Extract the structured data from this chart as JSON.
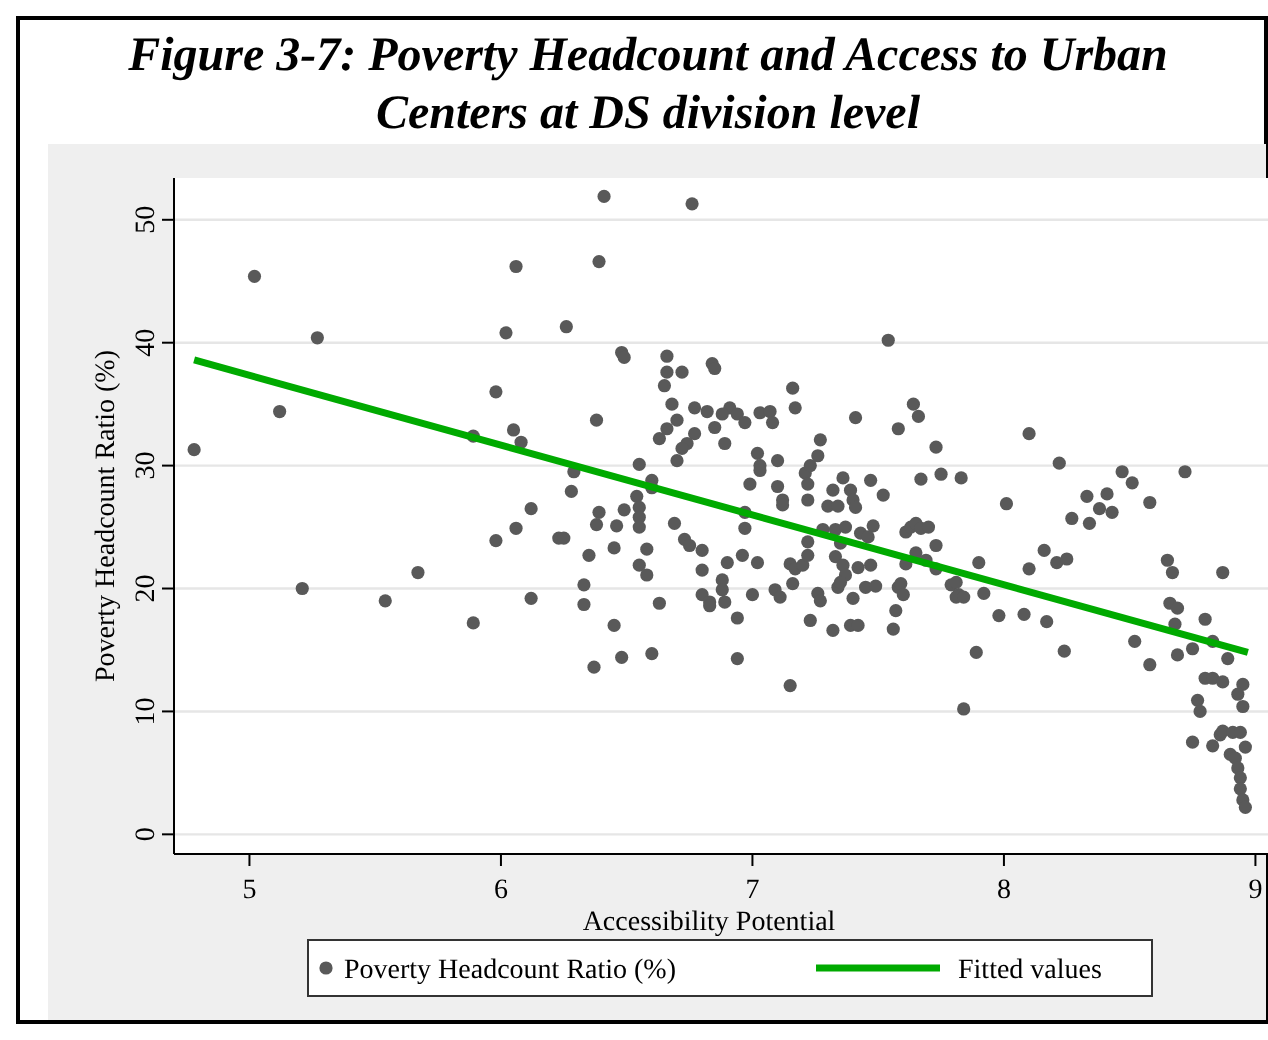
{
  "chart_data": {
    "type": "scatter",
    "title": "Figure 3-7: Poverty Headcount and Access to Urban Centers at DS division level",
    "xlabel": "Accessibility Potential",
    "ylabel": "Poverty Headcount Ratio (%)",
    "xlim": [
      4.7,
      9.05
    ],
    "ylim": [
      -1.6,
      53.4
    ],
    "xticks": [
      5,
      6,
      7,
      8,
      9
    ],
    "yticks": [
      0,
      10,
      20,
      30,
      40,
      50
    ],
    "grid": "y",
    "legend": "bottom",
    "series": [
      {
        "name": "Poverty Headcount Ratio (%)",
        "marker": "circle",
        "color": "#595959",
        "x": [
          4.78,
          5.02,
          5.27,
          5.12,
          5.21,
          5.54,
          5.67,
          5.89,
          5.89,
          5.98,
          6.02,
          6.06,
          6.05,
          6.08,
          6.12,
          6.06,
          5.98,
          6.12,
          6.23,
          6.41,
          6.76,
          6.39,
          6.26,
          6.48,
          6.49,
          6.66,
          6.66,
          6.72,
          6.65,
          6.84,
          6.85,
          7.54,
          6.68,
          6.77,
          6.82,
          6.7,
          6.66,
          6.63,
          6.77,
          6.74,
          6.72,
          6.85,
          6.89,
          6.91,
          6.94,
          6.97,
          6.88,
          7.03,
          7.07,
          7.08,
          7.16,
          7.17,
          7.41,
          7.58,
          6.38,
          6.29,
          6.28,
          6.25,
          6.35,
          6.39,
          6.38,
          6.45,
          6.46,
          6.49,
          6.55,
          6.6,
          6.6,
          6.54,
          6.55,
          6.55,
          6.55,
          6.58,
          6.55,
          6.58,
          6.33,
          6.33,
          6.45,
          6.48,
          6.37,
          6.6,
          6.63,
          6.69,
          6.7,
          6.73,
          6.75,
          6.8,
          6.8,
          6.8,
          6.83,
          6.83,
          6.88,
          6.88,
          6.89,
          6.94,
          6.94,
          6.9,
          6.96,
          6.97,
          6.97,
          6.99,
          7.02,
          7.03,
          7.03,
          7.02,
          7.0,
          7.1,
          7.1,
          7.12,
          7.12,
          7.09,
          7.11,
          7.15,
          7.17,
          7.2,
          7.22,
          7.22,
          7.16,
          7.15,
          7.21,
          7.23,
          7.22,
          7.22,
          7.26,
          7.27,
          7.23,
          7.26,
          7.27,
          7.3,
          7.34,
          7.32,
          7.36,
          7.39,
          7.4,
          7.41,
          7.28,
          7.33,
          7.37,
          7.43,
          7.48,
          7.46,
          7.47,
          7.52,
          7.35,
          7.33,
          7.36,
          7.37,
          7.42,
          7.47,
          7.34,
          7.35,
          7.4,
          7.45,
          7.49,
          7.32,
          7.39,
          7.42,
          7.56,
          7.58,
          7.57,
          7.64,
          7.66,
          7.73,
          7.67,
          7.75,
          7.83,
          7.61,
          7.63,
          7.65,
          7.67,
          7.7,
          7.65,
          7.69,
          7.73,
          7.73,
          7.61,
          7.59,
          7.6,
          7.79,
          7.81,
          7.82,
          7.81,
          7.84,
          7.9,
          7.92,
          7.89,
          7.84,
          7.98,
          8.01,
          8.1,
          8.1,
          8.08,
          8.17,
          8.16,
          8.21,
          8.25,
          8.24,
          8.22,
          8.27,
          8.34,
          8.33,
          8.38,
          8.41,
          8.43,
          8.47,
          8.51,
          8.58,
          8.52,
          8.58,
          8.72,
          8.65,
          8.67,
          8.66,
          8.69,
          8.68,
          8.69,
          8.75,
          8.8,
          8.83,
          8.87,
          8.89,
          8.8,
          8.83,
          8.87,
          8.77,
          8.78,
          8.75,
          8.83,
          8.86,
          8.87,
          8.91,
          8.94,
          8.9,
          8.92,
          8.96,
          8.95,
          8.93,
          8.95,
          8.93,
          8.94,
          8.94,
          8.95,
          8.96
        ],
        "values": [
          31.3,
          45.4,
          40.4,
          34.4,
          20.0,
          19.0,
          21.3,
          17.2,
          32.4,
          36.0,
          40.8,
          46.2,
          32.9,
          31.9,
          26.5,
          24.9,
          23.9,
          19.2,
          24.1,
          51.9,
          51.3,
          46.6,
          41.3,
          39.2,
          38.8,
          38.9,
          37.6,
          37.6,
          36.5,
          38.3,
          37.9,
          40.2,
          35.0,
          34.7,
          34.4,
          33.7,
          33.0,
          32.2,
          32.6,
          31.8,
          31.4,
          33.1,
          31.8,
          34.7,
          34.2,
          33.5,
          34.2,
          34.3,
          34.4,
          33.5,
          36.3,
          34.7,
          33.9,
          33.0,
          33.7,
          29.5,
          27.9,
          24.1,
          22.7,
          26.2,
          25.2,
          23.3,
          25.1,
          26.4,
          30.1,
          28.8,
          28.2,
          27.5,
          26.6,
          25.8,
          25.0,
          23.2,
          21.9,
          21.1,
          20.3,
          18.7,
          17.0,
          14.4,
          13.6,
          14.7,
          18.8,
          25.3,
          30.4,
          24.0,
          23.5,
          23.1,
          21.5,
          19.5,
          18.9,
          18.6,
          20.7,
          19.9,
          18.9,
          17.6,
          14.3,
          22.1,
          22.7,
          24.9,
          26.2,
          28.5,
          31.0,
          30.0,
          29.6,
          22.1,
          19.5,
          30.4,
          28.3,
          27.2,
          26.8,
          19.9,
          19.3,
          22.0,
          21.6,
          21.9,
          22.7,
          23.8,
          20.4,
          12.1,
          29.4,
          30.0,
          28.5,
          27.2,
          30.8,
          32.1,
          17.4,
          19.6,
          19.0,
          26.7,
          26.7,
          28.0,
          29.0,
          28.0,
          27.2,
          26.6,
          24.8,
          24.8,
          25.0,
          24.5,
          25.1,
          24.2,
          28.8,
          27.6,
          23.7,
          22.6,
          21.9,
          21.1,
          21.7,
          21.9,
          20.1,
          20.5,
          19.2,
          20.1,
          20.2,
          16.6,
          17.0,
          17.0,
          16.7,
          20.1,
          18.2,
          35.0,
          34.0,
          31.5,
          28.9,
          29.3,
          29.0,
          24.6,
          25.0,
          25.3,
          24.9,
          25.0,
          22.9,
          22.3,
          23.5,
          21.6,
          22.0,
          20.4,
          19.5,
          20.3,
          20.5,
          19.5,
          19.3,
          19.3,
          22.1,
          19.6,
          14.8,
          10.2,
          17.8,
          26.9,
          32.6,
          21.6,
          17.9,
          17.3,
          23.1,
          22.1,
          22.4,
          14.9,
          30.2,
          25.7,
          25.3,
          27.5,
          26.5,
          27.7,
          26.2,
          29.5,
          28.6,
          27.0,
          15.7,
          13.8,
          29.5,
          22.3,
          21.3,
          18.8,
          18.4,
          17.1,
          14.6,
          15.1,
          17.5,
          15.7,
          21.3,
          14.3,
          12.7,
          12.7,
          12.4,
          10.9,
          10.0,
          7.5,
          7.2,
          8.1,
          8.4,
          8.3,
          8.3,
          6.5,
          6.2,
          7.1,
          12.2,
          11.4,
          10.4,
          5.4,
          4.6,
          3.7,
          2.8,
          2.2
        ]
      },
      {
        "type": "line",
        "marker": "none",
        "name": "Fitted values",
        "color": "#00aa00",
        "x": [
          4.78,
          8.97
        ],
        "values": [
          38.6,
          14.8
        ]
      }
    ]
  }
}
